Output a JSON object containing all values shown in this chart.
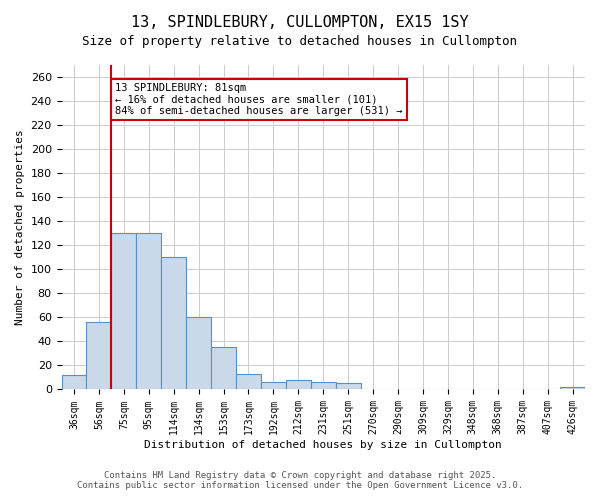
{
  "title_line1": "13, SPINDLEBURY, CULLOMPTON, EX15 1SY",
  "title_line2": "Size of property relative to detached houses in Cullompton",
  "xlabel": "Distribution of detached houses by size in Cullompton",
  "ylabel": "Number of detached properties",
  "categories": [
    "36sqm",
    "56sqm",
    "75sqm",
    "95sqm",
    "114sqm",
    "134sqm",
    "153sqm",
    "173sqm",
    "192sqm",
    "212sqm",
    "231sqm",
    "251sqm",
    "270sqm",
    "290sqm",
    "309sqm",
    "329sqm",
    "348sqm",
    "368sqm",
    "387sqm",
    "407sqm",
    "426sqm"
  ],
  "values": [
    12,
    56,
    130,
    130,
    110,
    60,
    35,
    13,
    6,
    8,
    6,
    5,
    0,
    0,
    0,
    0,
    0,
    0,
    0,
    0,
    2
  ],
  "bar_color": "#c9d9ea",
  "bar_edge_color": "#5a8fc0",
  "vline_x": 1.5,
  "vline_color": "#cc0000",
  "annotation_text": "13 SPINDLEBURY: 81sqm\n← 16% of detached houses are smaller (101)\n84% of semi-detached houses are larger (531) →",
  "annotation_box_color": "#cc0000",
  "ylim": [
    0,
    270
  ],
  "yticks": [
    0,
    20,
    40,
    60,
    80,
    100,
    120,
    140,
    160,
    180,
    200,
    220,
    240,
    260
  ],
  "footer_line1": "Contains HM Land Registry data © Crown copyright and database right 2025.",
  "footer_line2": "Contains public sector information licensed under the Open Government Licence v3.0.",
  "bg_color": "#ffffff",
  "grid_color": "#cccccc"
}
